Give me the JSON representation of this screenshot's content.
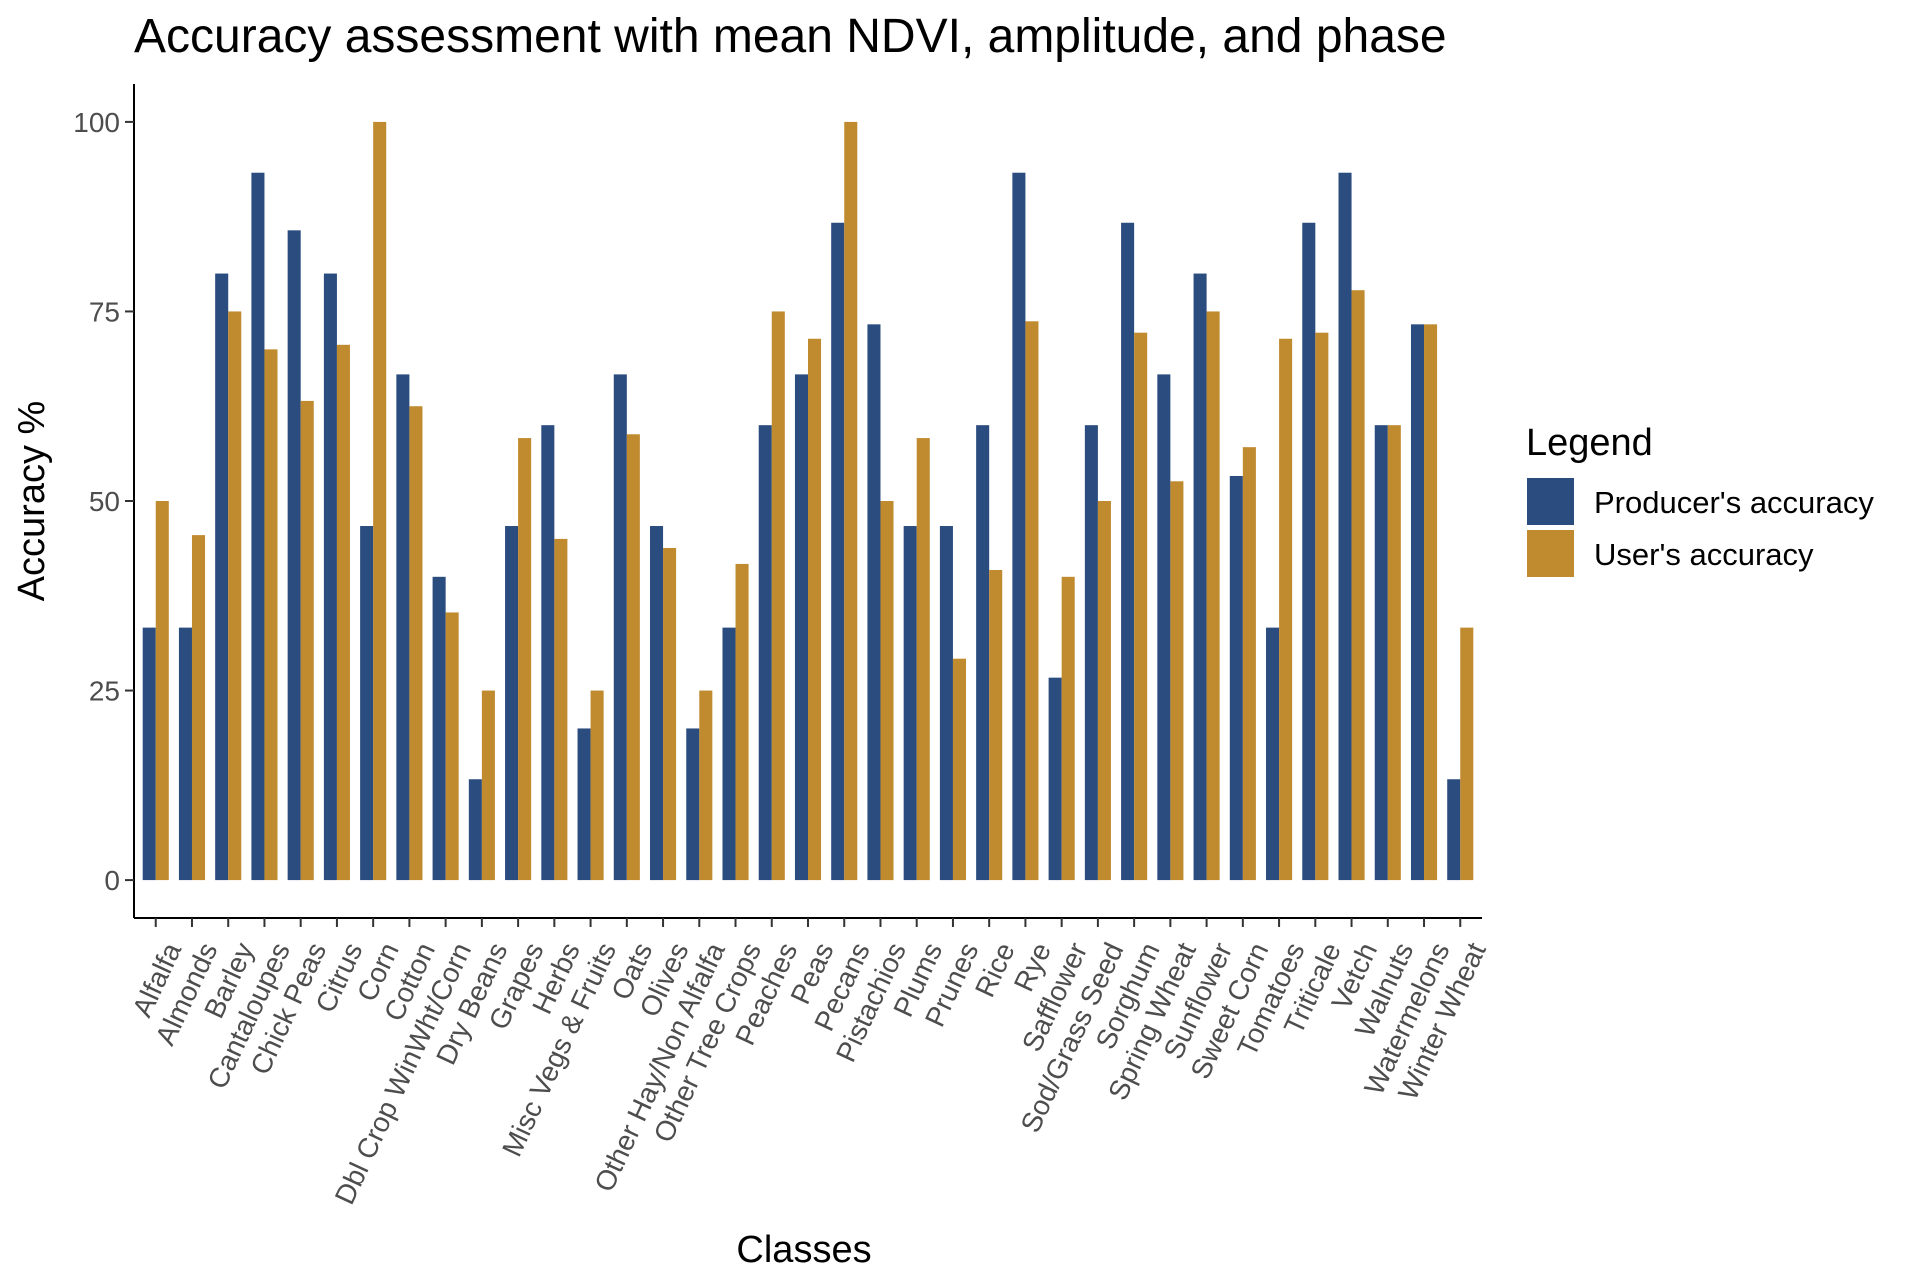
{
  "chart_data": {
    "type": "bar",
    "title": "Accuracy assessment with mean NDVI, amplitude, and phase",
    "xlabel": "Classes",
    "ylabel": "Accuracy %",
    "ylim": [
      -5,
      105
    ],
    "yticks": [
      0,
      25,
      50,
      75,
      100
    ],
    "grid": false,
    "legend_position": "right",
    "legend_title": "Legend",
    "categories": [
      "Alfalfa",
      "Almonds",
      "Barley",
      "Cantaloupes",
      "Chick Peas",
      "Citrus",
      "Corn",
      "Cotton",
      "Dbl Crop WinWht/Corn",
      "Dry Beans",
      "Grapes",
      "Herbs",
      "Misc Vegs & Fruits",
      "Oats",
      "Olives",
      "Other Hay/Non Alfalfa",
      "Other Tree Crops",
      "Peaches",
      "Peas",
      "Pecans",
      "Pistachios",
      "Plums",
      "Prunes",
      "Rice",
      "Rye",
      "Safflower",
      "Sod/Grass Seed",
      "Sorghum",
      "Spring Wheat",
      "Sunflower",
      "Sweet Corn",
      "Tomatoes",
      "Triticale",
      "Vetch",
      "Walnuts",
      "Watermelons",
      "Winter Wheat"
    ],
    "series": [
      {
        "name": "Producer's accuracy",
        "color": "#2b4c7e",
        "values": [
          33.3,
          33.3,
          80.0,
          93.3,
          85.7,
          80.0,
          46.7,
          66.7,
          40.0,
          13.3,
          46.7,
          60.0,
          20.0,
          66.7,
          46.7,
          20.0,
          33.3,
          60.0,
          66.7,
          86.7,
          73.3,
          46.7,
          46.7,
          60.0,
          93.3,
          26.7,
          60.0,
          86.7,
          66.7,
          80.0,
          53.3,
          33.3,
          86.7,
          93.3,
          60.0,
          73.3,
          13.3
        ]
      },
      {
        "name": "User's accuracy",
        "color": "#c08a2f",
        "values": [
          50.0,
          45.5,
          75.0,
          70.0,
          63.2,
          70.6,
          100.0,
          62.5,
          35.3,
          25.0,
          58.3,
          45.0,
          25.0,
          58.8,
          43.8,
          25.0,
          41.7,
          75.0,
          71.4,
          100.0,
          50.0,
          58.3,
          29.2,
          40.9,
          73.7,
          40.0,
          50.0,
          72.2,
          52.6,
          75.0,
          57.1,
          71.4,
          72.2,
          77.8,
          60.0,
          73.3,
          33.3
        ]
      }
    ]
  }
}
